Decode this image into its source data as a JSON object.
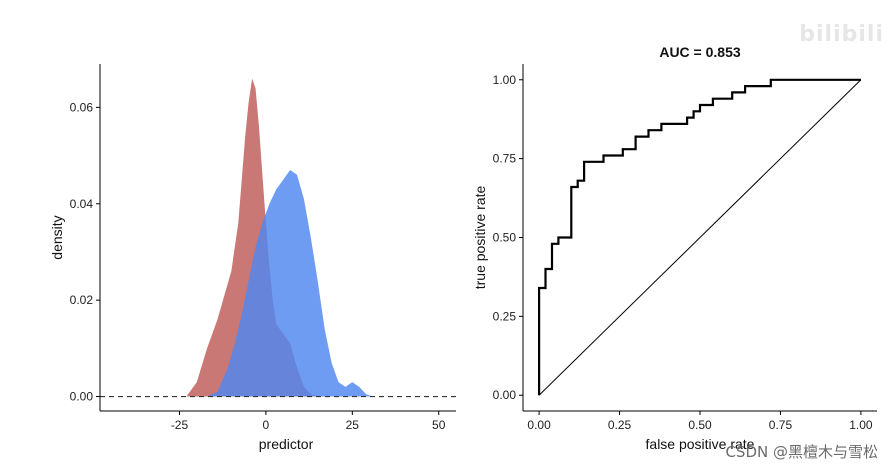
{
  "chart_data": [
    {
      "type": "area",
      "title": "",
      "xlabel": "predictor",
      "ylabel": "density",
      "xlim": [
        -48,
        55
      ],
      "ylim": [
        -0.003,
        0.069
      ],
      "xticks": [
        -25,
        0,
        25,
        50
      ],
      "xtick_labels": [
        "-25",
        "0",
        "25",
        "50"
      ],
      "yticks": [
        0.0,
        0.02,
        0.04,
        0.06
      ],
      "ytick_labels": [
        "0.00",
        "0.02",
        "0.04",
        "0.06"
      ],
      "grid": false,
      "reference_line": {
        "y": 0,
        "style": "dashed"
      },
      "series": [
        {
          "color": "#c0605e",
          "x": [
            -23,
            -20,
            -17,
            -14,
            -12,
            -10,
            -8,
            -6,
            -5,
            -4,
            -3,
            -2,
            -1,
            0,
            1,
            2,
            3,
            5,
            7,
            9,
            11,
            13,
            15
          ],
          "values": [
            0.0,
            0.003,
            0.01,
            0.016,
            0.021,
            0.026,
            0.036,
            0.054,
            0.061,
            0.066,
            0.064,
            0.056,
            0.046,
            0.036,
            0.027,
            0.02,
            0.015,
            0.013,
            0.011,
            0.006,
            0.002,
            0.0005,
            0.0
          ]
        },
        {
          "color": "#4f86f0",
          "x": [
            -17,
            -14,
            -11,
            -9,
            -7,
            -5,
            -3,
            -1,
            1,
            3,
            5,
            7,
            9,
            11,
            13,
            15,
            17,
            19,
            21,
            23,
            25,
            27,
            29,
            31
          ],
          "values": [
            0.0,
            0.001,
            0.006,
            0.011,
            0.017,
            0.024,
            0.031,
            0.036,
            0.04,
            0.043,
            0.045,
            0.047,
            0.046,
            0.041,
            0.033,
            0.024,
            0.014,
            0.007,
            0.003,
            0.002,
            0.003,
            0.002,
            0.0005,
            0.0
          ]
        }
      ]
    },
    {
      "type": "line",
      "title": "AUC = 0.853",
      "xlabel": "false positive rate",
      "ylabel": "true positive rate",
      "xlim": [
        -0.05,
        1.05
      ],
      "ylim": [
        -0.05,
        1.05
      ],
      "xticks": [
        0,
        0.25,
        0.5,
        0.75,
        1.0
      ],
      "xtick_labels": [
        "0.00",
        "0.25",
        "0.50",
        "0.75",
        "1.00"
      ],
      "yticks": [
        0,
        0.25,
        0.5,
        0.75,
        1.0
      ],
      "ytick_labels": [
        "0.00",
        "0.25",
        "0.50",
        "0.75",
        "1.00"
      ],
      "grid": false,
      "diagonal": true,
      "roc_points": [
        [
          0.0,
          0.0
        ],
        [
          0.0,
          0.34
        ],
        [
          0.02,
          0.34
        ],
        [
          0.02,
          0.4
        ],
        [
          0.04,
          0.4
        ],
        [
          0.04,
          0.48
        ],
        [
          0.06,
          0.48
        ],
        [
          0.06,
          0.5
        ],
        [
          0.1,
          0.5
        ],
        [
          0.1,
          0.66
        ],
        [
          0.12,
          0.66
        ],
        [
          0.12,
          0.68
        ],
        [
          0.14,
          0.68
        ],
        [
          0.14,
          0.74
        ],
        [
          0.2,
          0.74
        ],
        [
          0.2,
          0.76
        ],
        [
          0.26,
          0.76
        ],
        [
          0.26,
          0.78
        ],
        [
          0.3,
          0.78
        ],
        [
          0.3,
          0.82
        ],
        [
          0.34,
          0.82
        ],
        [
          0.34,
          0.84
        ],
        [
          0.38,
          0.84
        ],
        [
          0.38,
          0.86
        ],
        [
          0.46,
          0.86
        ],
        [
          0.46,
          0.88
        ],
        [
          0.48,
          0.88
        ],
        [
          0.48,
          0.9
        ],
        [
          0.5,
          0.9
        ],
        [
          0.5,
          0.92
        ],
        [
          0.54,
          0.92
        ],
        [
          0.54,
          0.94
        ],
        [
          0.6,
          0.94
        ],
        [
          0.6,
          0.96
        ],
        [
          0.64,
          0.96
        ],
        [
          0.64,
          0.98
        ],
        [
          0.72,
          0.98
        ],
        [
          0.72,
          1.0
        ],
        [
          1.0,
          1.0
        ]
      ]
    }
  ],
  "watermark": "CSDN @黑檀木与雪松",
  "watermark_top": "bilibili"
}
